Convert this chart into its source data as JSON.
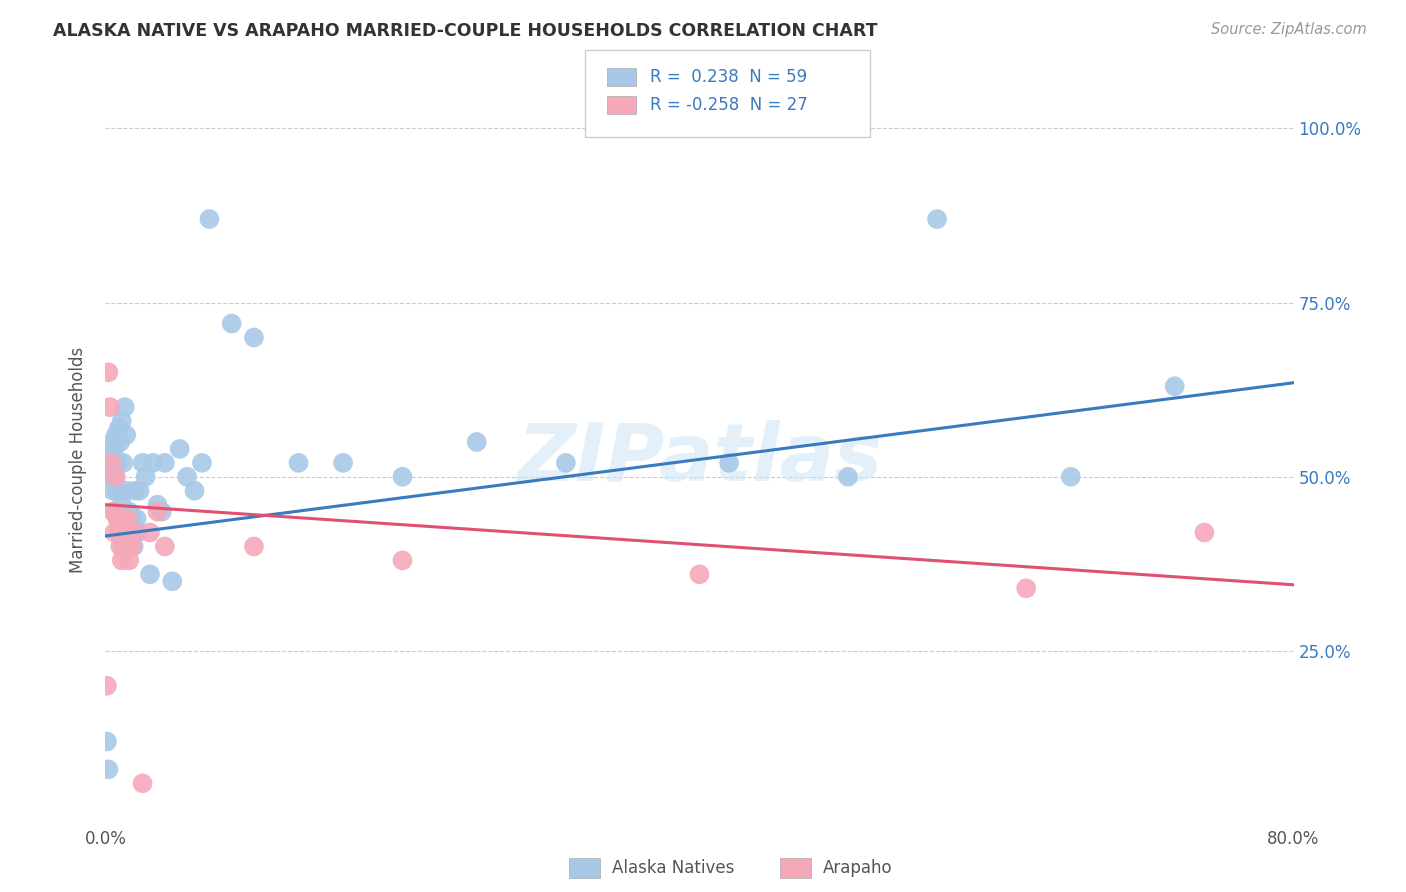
{
  "title": "ALASKA NATIVE VS ARAPAHO MARRIED-COUPLE HOUSEHOLDS CORRELATION CHART",
  "source": "Source: ZipAtlas.com",
  "ylabel": "Married-couple Households",
  "legend_label1": "Alaska Natives",
  "legend_label2": "Arapaho",
  "legend_text1": "R =  0.238  N = 59",
  "legend_text2": "R = -0.258  N = 27",
  "watermark": "ZIPatlas",
  "blue_color": "#a8c8e8",
  "pink_color": "#f5a8b8",
  "line_blue": "#3a7abf",
  "line_pink": "#e05070",
  "text_blue": "#3a7abf",
  "alaska_x": [
    0.001,
    0.002,
    0.003,
    0.004,
    0.004,
    0.005,
    0.005,
    0.006,
    0.006,
    0.007,
    0.007,
    0.008,
    0.008,
    0.009,
    0.009,
    0.01,
    0.01,
    0.011,
    0.011,
    0.012,
    0.012,
    0.013,
    0.013,
    0.014,
    0.014,
    0.015,
    0.016,
    0.017,
    0.018,
    0.019,
    0.02,
    0.021,
    0.022,
    0.023,
    0.025,
    0.027,
    0.03,
    0.032,
    0.035,
    0.038,
    0.04,
    0.045,
    0.05,
    0.055,
    0.06,
    0.065,
    0.07,
    0.085,
    0.1,
    0.13,
    0.16,
    0.2,
    0.25,
    0.31,
    0.42,
    0.5,
    0.56,
    0.65,
    0.72
  ],
  "alaska_y": [
    0.12,
    0.08,
    0.52,
    0.5,
    0.53,
    0.55,
    0.48,
    0.54,
    0.5,
    0.56,
    0.45,
    0.52,
    0.48,
    0.57,
    0.44,
    0.55,
    0.42,
    0.58,
    0.46,
    0.52,
    0.4,
    0.6,
    0.44,
    0.56,
    0.48,
    0.4,
    0.45,
    0.42,
    0.44,
    0.4,
    0.48,
    0.44,
    0.42,
    0.48,
    0.52,
    0.5,
    0.36,
    0.52,
    0.46,
    0.45,
    0.52,
    0.35,
    0.54,
    0.5,
    0.48,
    0.52,
    0.87,
    0.72,
    0.7,
    0.52,
    0.52,
    0.5,
    0.55,
    0.52,
    0.52,
    0.5,
    0.87,
    0.5,
    0.63
  ],
  "arapaho_x": [
    0.001,
    0.002,
    0.003,
    0.004,
    0.005,
    0.006,
    0.007,
    0.008,
    0.009,
    0.01,
    0.011,
    0.012,
    0.013,
    0.014,
    0.015,
    0.016,
    0.018,
    0.02,
    0.025,
    0.03,
    0.035,
    0.04,
    0.1,
    0.2,
    0.4,
    0.62,
    0.74
  ],
  "arapaho_y": [
    0.2,
    0.65,
    0.6,
    0.52,
    0.45,
    0.42,
    0.5,
    0.44,
    0.42,
    0.4,
    0.38,
    0.44,
    0.42,
    0.4,
    0.44,
    0.38,
    0.4,
    0.42,
    0.06,
    0.42,
    0.45,
    0.4,
    0.4,
    0.38,
    0.36,
    0.34,
    0.42
  ],
  "blue_line_x0": 0.0,
  "blue_line_y0": 0.415,
  "blue_line_x1": 0.8,
  "blue_line_y1": 0.635,
  "pink_line_x0": 0.0,
  "pink_line_y0": 0.46,
  "pink_line_x1": 0.8,
  "pink_line_y1": 0.345,
  "xmin": 0.0,
  "xmax": 0.8,
  "ymin": 0.0,
  "ymax": 1.05,
  "ytick_positions": [
    0.25,
    0.5,
    0.75,
    1.0
  ],
  "ytick_labels": [
    "25.0%",
    "50.0%",
    "75.0%",
    "100.0%"
  ],
  "xtick_positions": [
    0.0,
    0.2,
    0.4,
    0.6,
    0.8
  ],
  "xtick_labels": [
    "0.0%",
    "",
    "",
    "",
    "80.0%"
  ],
  "grid_color": "#cccccc",
  "background_color": "#ffffff"
}
